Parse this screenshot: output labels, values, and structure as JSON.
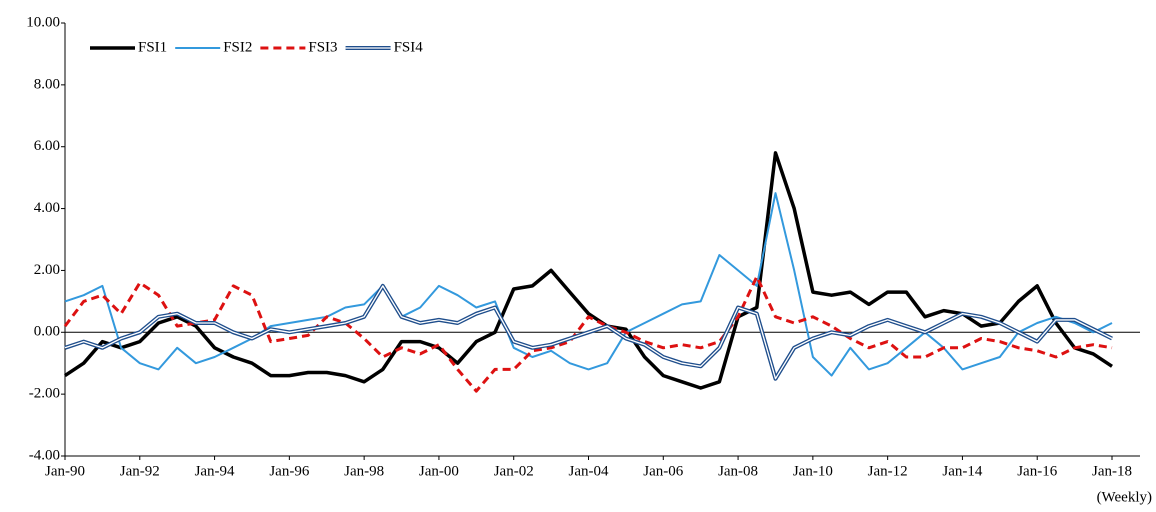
{
  "chart_data": {
    "type": "line",
    "x_label": "(Weekly)",
    "x": [
      "Jan-90",
      "Jul-90",
      "Jan-91",
      "Jul-91",
      "Jan-92",
      "Jul-92",
      "Jan-93",
      "Jul-93",
      "Jan-94",
      "Jul-94",
      "Jan-95",
      "Jul-95",
      "Jan-96",
      "Jul-96",
      "Jan-97",
      "Jul-97",
      "Jan-98",
      "Jul-98",
      "Jan-99",
      "Jul-99",
      "Jan-00",
      "Jul-00",
      "Jan-01",
      "Jul-01",
      "Jan-02",
      "Jul-02",
      "Jan-03",
      "Jul-03",
      "Jan-04",
      "Jul-04",
      "Jan-05",
      "Jul-05",
      "Jan-06",
      "Jul-06",
      "Jan-07",
      "Jul-07",
      "Jan-08",
      "Jul-08",
      "Jan-09",
      "Jul-09",
      "Jan-10",
      "Jul-10",
      "Jan-11",
      "Jul-11",
      "Jan-12",
      "Jul-12",
      "Jan-13",
      "Jul-13",
      "Jan-14",
      "Jul-14",
      "Jan-15",
      "Jul-15",
      "Jan-16",
      "Jul-16",
      "Jan-17",
      "Jul-17",
      "Jan-18"
    ],
    "xticks": [
      "Jan-90",
      "Jan-92",
      "Jan-94",
      "Jan-96",
      "Jan-98",
      "Jan-00",
      "Jan-02",
      "Jan-04",
      "Jan-06",
      "Jan-08",
      "Jan-10",
      "Jan-12",
      "Jan-14",
      "Jan-16",
      "Jan-18"
    ],
    "ylim": [
      -4,
      10
    ],
    "yticks": [
      {
        "value": -4,
        "label": "-4.00"
      },
      {
        "value": -2,
        "label": "-2.00"
      },
      {
        "value": 0,
        "label": "0.00"
      },
      {
        "value": 2,
        "label": "2.00"
      },
      {
        "value": 4,
        "label": "4.00"
      },
      {
        "value": 6,
        "label": "6.00"
      },
      {
        "value": 8,
        "label": "8.00"
      },
      {
        "value": 10,
        "label": "10.00"
      }
    ],
    "legend": "top-left",
    "series": [
      {
        "name": "FSI1",
        "color": "#000000",
        "line_style": "solid",
        "width": 3.5,
        "values": [
          -1.4,
          -1.0,
          -0.3,
          -0.5,
          -0.3,
          0.3,
          0.5,
          0.2,
          -0.5,
          -0.8,
          -1.0,
          -1.4,
          -1.4,
          -1.3,
          -1.3,
          -1.4,
          -1.6,
          -1.2,
          -0.3,
          -0.3,
          -0.5,
          -1.0,
          -0.3,
          0.0,
          1.4,
          1.5,
          2.0,
          1.3,
          0.6,
          0.2,
          0.1,
          -0.8,
          -1.4,
          -1.6,
          -1.8,
          -1.6,
          0.5,
          0.8,
          5.8,
          4.0,
          1.3,
          1.2,
          1.3,
          0.9,
          1.3,
          1.3,
          0.5,
          0.7,
          0.6,
          0.2,
          0.3,
          1.0,
          1.5,
          0.3,
          -0.5,
          -0.7,
          -1.1
        ]
      },
      {
        "name": "FSI2",
        "color": "#3399dd",
        "line_style": "solid",
        "width": 2,
        "values": [
          1.0,
          1.2,
          1.5,
          -0.5,
          -1.0,
          -1.2,
          -0.5,
          -1.0,
          -0.8,
          -0.5,
          -0.2,
          0.2,
          0.3,
          0.4,
          0.5,
          0.8,
          0.9,
          1.5,
          0.5,
          0.8,
          1.5,
          1.2,
          0.8,
          1.0,
          -0.5,
          -0.8,
          -0.6,
          -1.0,
          -1.2,
          -1.0,
          0.0,
          0.3,
          0.6,
          0.9,
          1.0,
          2.5,
          2.0,
          1.5,
          4.5,
          2.0,
          -0.8,
          -1.4,
          -0.5,
          -1.2,
          -1.0,
          -0.5,
          0.0,
          -0.5,
          -1.2,
          -1.0,
          -0.8,
          0.0,
          0.3,
          0.5,
          0.3,
          0.0,
          0.3
        ]
      },
      {
        "name": "FSI3",
        "color": "#dd1111",
        "line_style": "dashed",
        "width": 3,
        "values": [
          0.2,
          1.0,
          1.2,
          0.6,
          1.6,
          1.2,
          0.2,
          0.3,
          0.4,
          1.5,
          1.2,
          -0.3,
          -0.2,
          -0.1,
          0.5,
          0.3,
          -0.2,
          -0.8,
          -0.5,
          -0.7,
          -0.4,
          -1.2,
          -1.9,
          -1.2,
          -1.2,
          -0.6,
          -0.5,
          -0.3,
          0.5,
          0.2,
          0.0,
          -0.3,
          -0.5,
          -0.4,
          -0.5,
          -0.3,
          0.5,
          1.8,
          0.5,
          0.3,
          0.5,
          0.2,
          -0.2,
          -0.5,
          -0.3,
          -0.8,
          -0.8,
          -0.5,
          -0.5,
          -0.2,
          -0.3,
          -0.5,
          -0.6,
          -0.8,
          -0.5,
          -0.4,
          -0.5
        ]
      },
      {
        "name": "FSI4",
        "color": "#1f4e8c",
        "line_style": "double",
        "width": 4,
        "values": [
          -0.5,
          -0.3,
          -0.5,
          -0.2,
          0.0,
          0.5,
          0.6,
          0.3,
          0.3,
          0.0,
          -0.2,
          0.1,
          0.0,
          0.1,
          0.2,
          0.3,
          0.5,
          1.5,
          0.5,
          0.3,
          0.4,
          0.3,
          0.6,
          0.8,
          -0.3,
          -0.5,
          -0.4,
          -0.2,
          0.0,
          0.2,
          -0.2,
          -0.4,
          -0.8,
          -1.0,
          -1.1,
          -0.5,
          0.8,
          0.6,
          -1.5,
          -0.5,
          -0.2,
          0.0,
          -0.1,
          0.2,
          0.4,
          0.2,
          0.0,
          0.3,
          0.6,
          0.5,
          0.3,
          0.0,
          -0.3,
          0.4,
          0.4,
          0.1,
          -0.2
        ]
      }
    ]
  }
}
